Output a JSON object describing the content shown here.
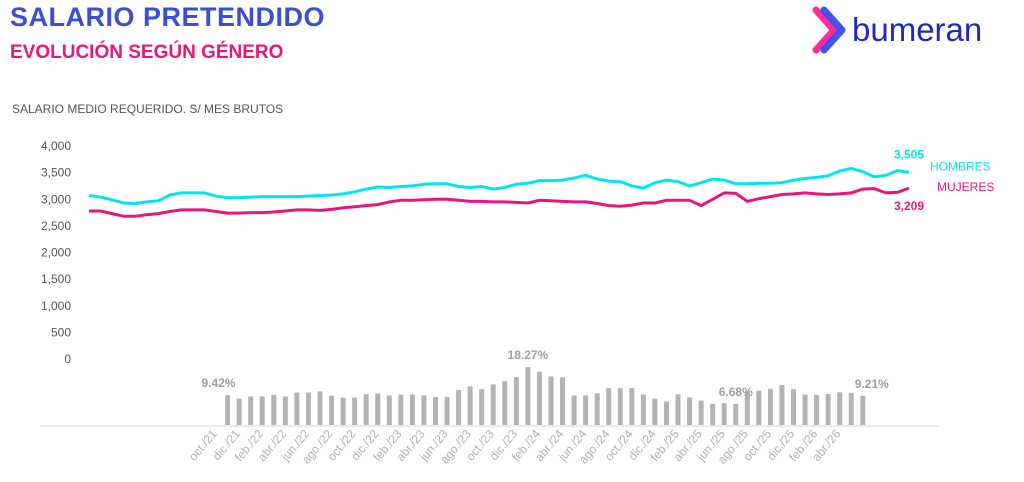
{
  "header": {
    "title": "SALARIO PRETENDIDO",
    "subtitle": "EVOLUCIÓN SEGÚN GÉNERO",
    "caption": "SALARIO MEDIO REQUERIDO. S/ MES BRUTOS"
  },
  "logo": {
    "text": "bumeran",
    "colors": [
      "#ff2aa0",
      "#6a3cf0",
      "#2a44e6"
    ]
  },
  "colors": {
    "hombres": "#00e5f2",
    "mujeres": "#e8157a",
    "bars": "#b3b3b3",
    "axis_text": "#555555",
    "bar_label": "#9e9e9e"
  },
  "chart_data": {
    "type": "line",
    "title": "SALARIO PRETENDIDO",
    "ylabel": "SALARIO MEDIO REQUERIDO. S/ MES BRUTOS",
    "ylim": [
      0,
      4000
    ],
    "y_ticks": [
      "4,000",
      "3,500",
      "3,000",
      "2,500",
      "2,000",
      "1,500",
      "1,000",
      "500",
      "0"
    ],
    "x_tick_labels": [
      "oct./21",
      "dic./21",
      "feb./22",
      "abr./22",
      "jun./22",
      "ago./22",
      "oct./22",
      "dic./22",
      "feb./23",
      "abr./23",
      "jun./23",
      "ago./23",
      "oct./23",
      "dic./23",
      "feb./24",
      "abr./24",
      "jun./24",
      "ago./24",
      "oct./24",
      "dic./24",
      "feb./25",
      "abr./25",
      "jun./25",
      "ago./25",
      "oct./25",
      "dic./25",
      "feb./26",
      "abr./26"
    ],
    "x_tick_every": 2,
    "series": [
      {
        "name": "HOMBRES",
        "end_label": "3,505",
        "values": [
          3070,
          3040,
          2990,
          2930,
          2920,
          2950,
          2970,
          3080,
          3120,
          3120,
          3120,
          3060,
          3030,
          3030,
          3040,
          3050,
          3050,
          3050,
          3050,
          3060,
          3070,
          3080,
          3100,
          3140,
          3190,
          3230,
          3220,
          3240,
          3250,
          3280,
          3290,
          3290,
          3240,
          3220,
          3240,
          3190,
          3220,
          3280,
          3300,
          3350,
          3350,
          3360,
          3400,
          3450,
          3380,
          3340,
          3330,
          3250,
          3210,
          3310,
          3360,
          3330,
          3250,
          3310,
          3380,
          3360,
          3290,
          3290,
          3300,
          3300,
          3310,
          3360,
          3390,
          3410,
          3440,
          3530,
          3580,
          3520,
          3420,
          3450,
          3540,
          3505
        ]
      },
      {
        "name": "MUJERES",
        "end_label": "3,209",
        "values": [
          2780,
          2780,
          2730,
          2680,
          2680,
          2710,
          2730,
          2770,
          2800,
          2800,
          2800,
          2770,
          2740,
          2740,
          2750,
          2750,
          2760,
          2780,
          2800,
          2800,
          2790,
          2810,
          2840,
          2860,
          2880,
          2900,
          2950,
          2980,
          2980,
          2990,
          3000,
          3000,
          2980,
          2960,
          2960,
          2950,
          2950,
          2940,
          2930,
          2980,
          2970,
          2960,
          2950,
          2950,
          2920,
          2880,
          2870,
          2890,
          2930,
          2930,
          2980,
          2980,
          2980,
          2880,
          3000,
          3120,
          3110,
          2960,
          3010,
          3050,
          3090,
          3100,
          3120,
          3100,
          3090,
          3100,
          3120,
          3190,
          3200,
          3120,
          3130,
          3209
        ]
      }
    ],
    "variation": {
      "values": [
        9.42,
        8.3,
        9.0,
        9.0,
        9.5,
        9.0,
        10.2,
        10.2,
        10.6,
        9.2,
        8.6,
        8.6,
        9.7,
        9.9,
        9.3,
        9.6,
        9.6,
        9.3,
        8.8,
        8.8,
        11.0,
        12.2,
        11.3,
        12.8,
        13.8,
        15.1,
        18.27,
        16.8,
        15.3,
        15.0,
        9.3,
        9.3,
        10.0,
        11.6,
        11.6,
        11.6,
        9.6,
        8.3,
        7.4,
        9.7,
        8.7,
        7.7,
        6.68,
        6.9,
        6.68,
        10.6,
        10.8,
        11.4,
        12.6,
        11.3,
        9.6,
        9.5,
        9.8,
        10.3,
        10.1,
        9.21
      ],
      "start_index": 12,
      "labels": [
        {
          "index": 0,
          "text": "9.42%"
        },
        {
          "index": 26,
          "text": "18.27%"
        },
        {
          "index": 44,
          "text": "6.68%"
        },
        {
          "index": 55,
          "text": "9.21%"
        }
      ]
    }
  }
}
